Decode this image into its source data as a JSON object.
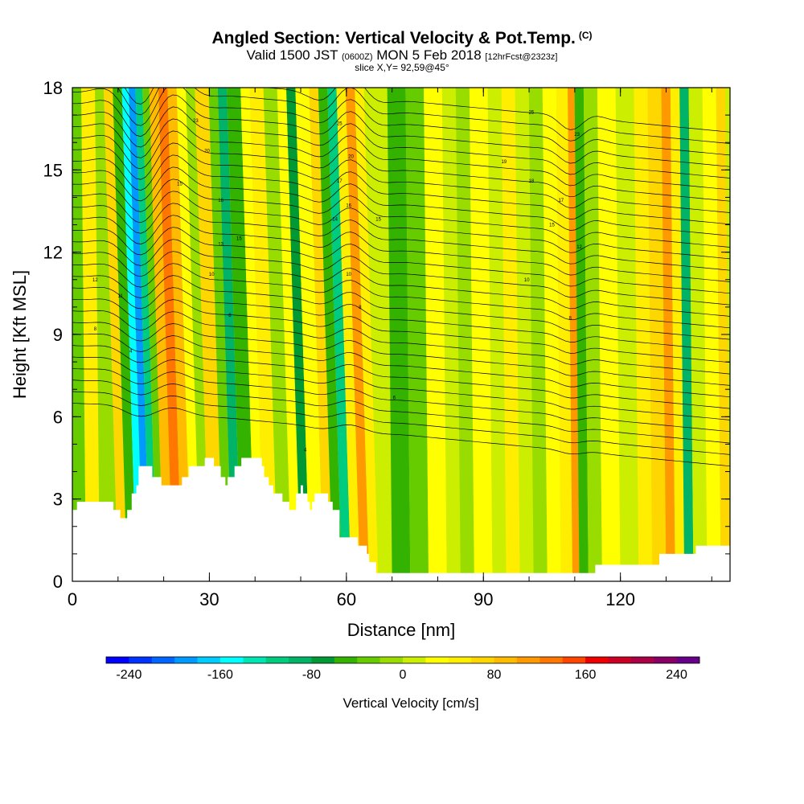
{
  "title": {
    "main": "Angled Section: Vertical Velocity & Pot.Temp.",
    "main_tag": "(C)",
    "valid_prefix": "Valid 1500 JST",
    "valid_zulu": "(0600Z)",
    "valid_date": "MON 5 Feb 2018",
    "forecast": "[12hrFcst@2323z]",
    "slice": "slice X,Y= 92,59@45°"
  },
  "chart_data": {
    "type": "heatmap",
    "xlabel": "Distance [nm]",
    "ylabel": "Height [Kft MSL]",
    "xlim": [
      0,
      144
    ],
    "ylim": [
      0,
      18
    ],
    "x_ticks": [
      "0",
      "30",
      "60",
      "90",
      "120"
    ],
    "x_tick_values": [
      0,
      30,
      60,
      90,
      120
    ],
    "x_minor_step": 10,
    "y_ticks": [
      "0",
      "3",
      "6",
      "9",
      "12",
      "15",
      "18"
    ],
    "y_tick_values": [
      0,
      3,
      6,
      9,
      12,
      15,
      18
    ],
    "y_minor_step": 1,
    "colorbar": {
      "label": "Vertical Velocity [cm/s]",
      "range": [
        -260,
        260
      ],
      "step": 20,
      "tick_labels": [
        "-240",
        "-160",
        "-80",
        "0",
        "80",
        "160",
        "240"
      ],
      "tick_values": [
        -240,
        -160,
        -80,
        0,
        80,
        160,
        240
      ],
      "colors": [
        "#0000ff",
        "#0033ff",
        "#0066ff",
        "#0099ff",
        "#00ccff",
        "#00ffff",
        "#00e6b3",
        "#00cc80",
        "#00b366",
        "#009933",
        "#33b300",
        "#66cc00",
        "#99dd00",
        "#ccee00",
        "#ffff00",
        "#ffee00",
        "#ffd700",
        "#ffbb00",
        "#ff9900",
        "#ff7700",
        "#ff4400",
        "#ee0000",
        "#cc0022",
        "#aa0044",
        "#880066",
        "#660088"
      ]
    },
    "terrain_kft": [
      [
        0,
        2.6
      ],
      [
        1,
        2.9
      ],
      [
        8,
        2.9
      ],
      [
        9,
        2.6
      ],
      [
        10,
        2.6
      ],
      [
        10.5,
        2.3
      ],
      [
        11.5,
        2.3
      ],
      [
        12,
        2.6
      ],
      [
        12.5,
        2.6
      ],
      [
        13,
        3.2
      ],
      [
        14,
        3.5
      ],
      [
        14.5,
        4.2
      ],
      [
        17,
        4.2
      ],
      [
        17.5,
        3.8
      ],
      [
        19,
        3.8
      ],
      [
        19.5,
        3.5
      ],
      [
        23.5,
        3.5
      ],
      [
        24,
        3.8
      ],
      [
        25,
        3.8
      ],
      [
        25.5,
        4.2
      ],
      [
        28.5,
        4.2
      ],
      [
        29,
        4.5
      ],
      [
        30.5,
        4.5
      ],
      [
        31,
        4.2
      ],
      [
        32,
        4.2
      ],
      [
        32.5,
        3.8
      ],
      [
        33,
        3.8
      ],
      [
        33.5,
        3.5
      ],
      [
        34,
        3.8
      ],
      [
        35,
        3.8
      ],
      [
        35.5,
        4.2
      ],
      [
        36.5,
        4.2
      ],
      [
        37,
        4.5
      ],
      [
        41,
        4.5
      ],
      [
        41.5,
        4.2
      ],
      [
        42,
        3.8
      ],
      [
        43,
        3.5
      ],
      [
        44,
        3.2
      ],
      [
        45.5,
        3.2
      ],
      [
        46,
        2.9
      ],
      [
        47,
        2.9
      ],
      [
        47.5,
        2.6
      ],
      [
        48.5,
        2.6
      ],
      [
        49,
        3.2
      ],
      [
        50,
        3.5
      ],
      [
        50.5,
        3.2
      ],
      [
        51.5,
        2.9
      ],
      [
        52,
        2.6
      ],
      [
        52.5,
        2.9
      ],
      [
        53,
        3.2
      ],
      [
        55.5,
        3.2
      ],
      [
        56,
        2.9
      ],
      [
        57,
        2.6
      ],
      [
        58,
        2.6
      ],
      [
        58.5,
        1.6
      ],
      [
        62,
        1.6
      ],
      [
        62.5,
        1.3
      ],
      [
        64,
        1.3
      ],
      [
        64.5,
        1.0
      ],
      [
        65,
        0.7
      ],
      [
        66,
        0.7
      ],
      [
        66.5,
        0.3
      ],
      [
        114,
        0.3
      ],
      [
        114.5,
        0.6
      ],
      [
        128,
        0.6
      ],
      [
        128.5,
        1.0
      ],
      [
        136,
        1.0
      ],
      [
        136.5,
        1.3
      ],
      [
        144,
        1.3
      ]
    ],
    "bands": [
      {
        "x": 0,
        "value": -40
      },
      {
        "x": 3,
        "value": 40
      },
      {
        "x": 6,
        "value": -20
      },
      {
        "x": 10,
        "value": 60
      },
      {
        "x": 12,
        "value": -60
      },
      {
        "x": 14,
        "value": -160
      },
      {
        "x": 15.5,
        "value": -200
      },
      {
        "x": 17,
        "value": -120
      },
      {
        "x": 18.5,
        "value": -40
      },
      {
        "x": 20,
        "value": 80
      },
      {
        "x": 22,
        "value": 120
      },
      {
        "x": 24,
        "value": 80
      },
      {
        "x": 26,
        "value": 20
      },
      {
        "x": 28,
        "value": -20
      },
      {
        "x": 30,
        "value": 60
      },
      {
        "x": 33,
        "value": -40
      },
      {
        "x": 35,
        "value": -100
      },
      {
        "x": 37,
        "value": -60
      },
      {
        "x": 40,
        "value": 20
      },
      {
        "x": 42,
        "value": 40
      },
      {
        "x": 45,
        "value": -20
      },
      {
        "x": 48,
        "value": 20
      },
      {
        "x": 50,
        "value": -80
      },
      {
        "x": 52,
        "value": 20
      },
      {
        "x": 55,
        "value": 60
      },
      {
        "x": 57,
        "value": -60
      },
      {
        "x": 59,
        "value": -120
      },
      {
        "x": 61,
        "value": 40
      },
      {
        "x": 63,
        "value": 100
      },
      {
        "x": 65,
        "value": 40
      },
      {
        "x": 67,
        "value": 0
      },
      {
        "x": 70,
        "value": -60
      },
      {
        "x": 74,
        "value": -40
      },
      {
        "x": 78,
        "value": 20
      },
      {
        "x": 82,
        "value": 0
      },
      {
        "x": 85,
        "value": -20
      },
      {
        "x": 88,
        "value": 20
      },
      {
        "x": 92,
        "value": 0
      },
      {
        "x": 95,
        "value": 40
      },
      {
        "x": 98,
        "value": 0
      },
      {
        "x": 101,
        "value": -20
      },
      {
        "x": 104,
        "value": 20
      },
      {
        "x": 107,
        "value": 40
      },
      {
        "x": 109.5,
        "value": 100
      },
      {
        "x": 111,
        "value": -60
      },
      {
        "x": 113,
        "value": -20
      },
      {
        "x": 116,
        "value": 20
      },
      {
        "x": 120,
        "value": 0
      },
      {
        "x": 124,
        "value": 40
      },
      {
        "x": 127,
        "value": 60
      },
      {
        "x": 130,
        "value": 100
      },
      {
        "x": 132,
        "value": 40
      },
      {
        "x": 134,
        "value": -100
      },
      {
        "x": 136,
        "value": 0
      },
      {
        "x": 139,
        "value": 20
      },
      {
        "x": 142,
        "value": 60
      },
      {
        "x": 144,
        "value": 80
      }
    ],
    "contours": {
      "count": 30,
      "base_left_kft": 6.5,
      "base_right_kft": 4.2,
      "spacing_kft": 0.42,
      "labels": [
        {
          "x": 5,
          "y": 11.0,
          "text": "12"
        },
        {
          "x": 10.5,
          "y": 10.4,
          "text": "11"
        },
        {
          "x": 5,
          "y": 9.2,
          "text": "8"
        },
        {
          "x": 12.8,
          "y": 8.4,
          "text": "4"
        },
        {
          "x": 23.5,
          "y": 14.5,
          "text": "15"
        },
        {
          "x": 29.5,
          "y": 15.7,
          "text": "20"
        },
        {
          "x": 27,
          "y": 16.8,
          "text": "23"
        },
        {
          "x": 32.5,
          "y": 13.9,
          "text": "16"
        },
        {
          "x": 32.5,
          "y": 12.3,
          "text": "13"
        },
        {
          "x": 30.5,
          "y": 11.2,
          "text": "10"
        },
        {
          "x": 36.5,
          "y": 12.5,
          "text": "15"
        },
        {
          "x": 34.5,
          "y": 9.7,
          "text": "8"
        },
        {
          "x": 58.5,
          "y": 16.7,
          "text": "25"
        },
        {
          "x": 61,
          "y": 15.5,
          "text": "20"
        },
        {
          "x": 58.5,
          "y": 14.6,
          "text": "17"
        },
        {
          "x": 60.5,
          "y": 13.7,
          "text": "16"
        },
        {
          "x": 57.5,
          "y": 13.2,
          "text": "14"
        },
        {
          "x": 67,
          "y": 13.2,
          "text": "15"
        },
        {
          "x": 60.5,
          "y": 11.2,
          "text": "10"
        },
        {
          "x": 63,
          "y": 10.0,
          "text": "8"
        },
        {
          "x": 70.5,
          "y": 6.7,
          "text": "6"
        },
        {
          "x": 51,
          "y": 4.8,
          "text": "4"
        },
        {
          "x": 100.5,
          "y": 17.1,
          "text": "25"
        },
        {
          "x": 110.5,
          "y": 16.3,
          "text": "23"
        },
        {
          "x": 94.5,
          "y": 15.3,
          "text": "19"
        },
        {
          "x": 100.5,
          "y": 14.6,
          "text": "18"
        },
        {
          "x": 107,
          "y": 13.9,
          "text": "17"
        },
        {
          "x": 105,
          "y": 13.0,
          "text": "15"
        },
        {
          "x": 111,
          "y": 12.2,
          "text": "12"
        },
        {
          "x": 99.5,
          "y": 11.0,
          "text": "10"
        },
        {
          "x": 109,
          "y": 9.6,
          "text": "8"
        }
      ]
    }
  }
}
